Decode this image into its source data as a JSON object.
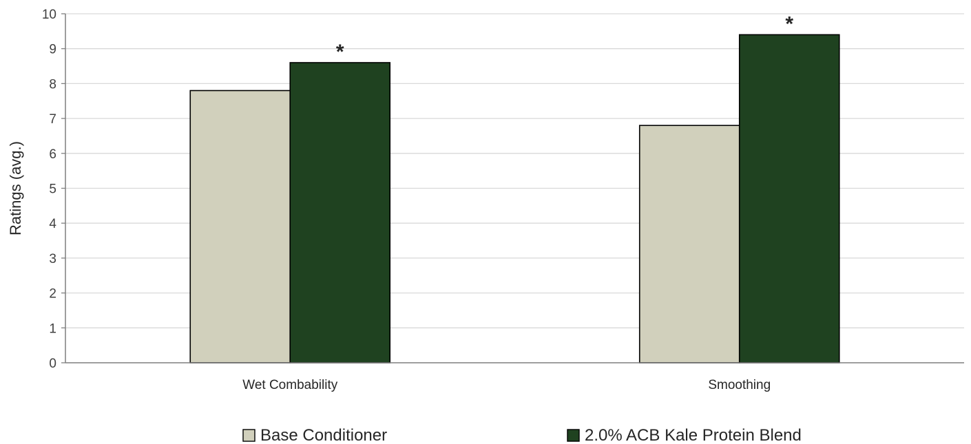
{
  "chart_data": {
    "type": "bar",
    "title": "",
    "xlabel": "",
    "ylabel": "Ratings (avg.)",
    "categories": [
      "Wet Combability",
      "Smoothing"
    ],
    "series": [
      {
        "name": "Base Conditioner",
        "values": [
          7.8,
          6.8
        ],
        "color": "#d1d0bc"
      },
      {
        "name": "2.0% ACB Kale Protein Blend",
        "values": [
          8.6,
          9.4
        ],
        "color": "#1f4220"
      }
    ],
    "annotations": [
      {
        "category": "Wet Combability",
        "series": "2.0% ACB Kale Protein Blend",
        "text": "*"
      },
      {
        "category": "Smoothing",
        "series": "2.0% ACB Kale Protein Blend",
        "text": "*"
      }
    ],
    "ylim": [
      0,
      10
    ],
    "yticks": [
      "0",
      "1",
      "2",
      "3",
      "4",
      "5",
      "6",
      "7",
      "8",
      "9",
      "10"
    ],
    "grid": true,
    "legend_position": "bottom",
    "gridline_color": "#d9d9d9",
    "axis_color": "#7f7f7f",
    "bar_outline_color": "#000000"
  }
}
